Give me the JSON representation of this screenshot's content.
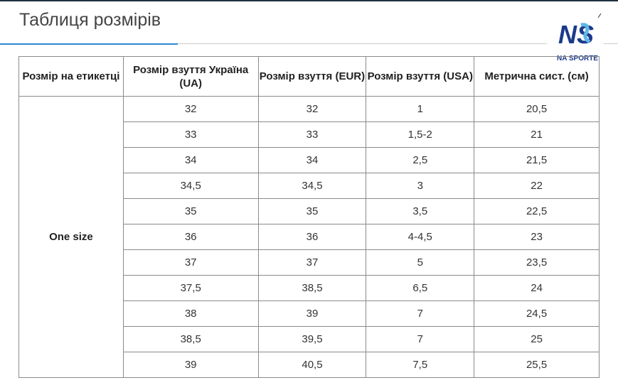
{
  "page": {
    "title": "Таблиця розмірів"
  },
  "logo": {
    "big_text": "NS",
    "small_text": "NA SPORTE",
    "color_primary": "#1b3a8c",
    "color_accent": "#5fb8e6"
  },
  "table": {
    "headers": [
      "Розмір на етикетці",
      "Розмір взуття Україна (UA)",
      "Розмір взуття (EUR)",
      "Розмір взуття (USA)",
      "Метрична сист. (см)"
    ],
    "label": "One size",
    "rows": [
      [
        "32",
        "32",
        "1",
        "20,5"
      ],
      [
        "33",
        "33",
        "1,5-2",
        "21"
      ],
      [
        "34",
        "34",
        "2,5",
        "21,5"
      ],
      [
        "34,5",
        "34,5",
        "3",
        "22"
      ],
      [
        "35",
        "35",
        "3,5",
        "22,5"
      ],
      [
        "36",
        "36",
        "4-4,5",
        "23"
      ],
      [
        "37",
        "37",
        "5",
        "23,5"
      ],
      [
        "37,5",
        "38,5",
        "6,5",
        "24"
      ],
      [
        "38",
        "39",
        "7",
        "24,5"
      ],
      [
        "38,5",
        "39,5",
        "7",
        "25"
      ],
      [
        "39",
        "40,5",
        "7,5",
        "25,5"
      ]
    ]
  }
}
